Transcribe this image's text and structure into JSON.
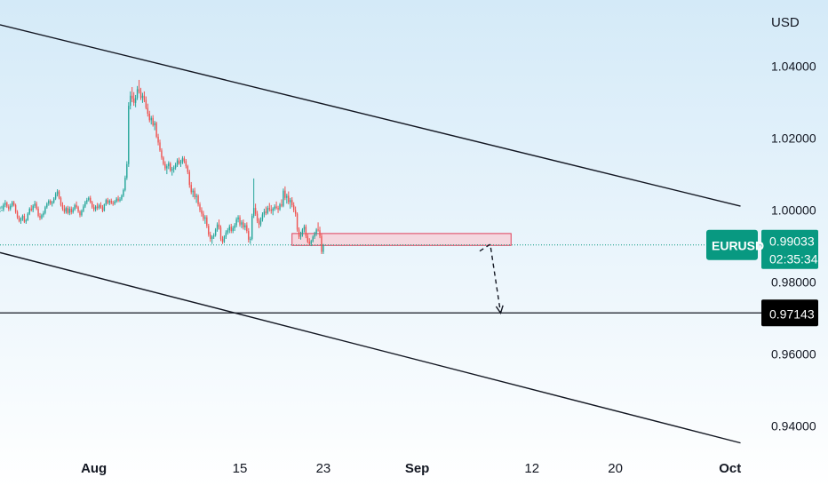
{
  "chart_data": {
    "type": "candlestick",
    "symbol": "EURUSD",
    "currency_label": "USD",
    "x_tick_labels": [
      {
        "label": "Aug",
        "date": "2022-08-01",
        "bold": true
      },
      {
        "label": "15",
        "date": "2022-08-15",
        "bold": false
      },
      {
        "label": "23",
        "date": "2022-08-23",
        "bold": false
      },
      {
        "label": "Sep",
        "date": "2022-09-01",
        "bold": true
      },
      {
        "label": "12",
        "date": "2022-09-12",
        "bold": false
      },
      {
        "label": "20",
        "date": "2022-09-20",
        "bold": false
      },
      {
        "label": "Oct",
        "date": "2022-10-01",
        "bold": true
      }
    ],
    "y_tick_labels": [
      "1.04000",
      "1.02000",
      "1.00000",
      "0.98000",
      "0.96000",
      "0.94000"
    ],
    "y_ticks": [
      1.04,
      1.02,
      1.0,
      0.98,
      0.96,
      0.94
    ],
    "ylim": [
      0.932,
      1.0584
    ],
    "xlim": [
      "2022-07-23",
      "2022-10-04"
    ],
    "current_price": {
      "label": "0.99033",
      "value": 0.99033,
      "countdown": "02:35:34",
      "color": "#089981"
    },
    "target_level": {
      "label": "0.97143",
      "value": 0.97143
    },
    "channel_upper": {
      "from": [
        "2022-07-23",
        1.0515
      ],
      "to": [
        "2022-10-02",
        1.0011
      ]
    },
    "channel_lower": {
      "from": [
        "2022-07-23",
        0.9882
      ],
      "to": [
        "2022-10-02",
        0.9353
      ]
    },
    "support_zone": {
      "from": "2022-08-20",
      "to": "2022-09-10",
      "top": 0.9935,
      "bottom": 0.9902
    },
    "projection_path": [
      [
        "2022-09-07",
        0.9886
      ],
      [
        "2022-09-08",
        0.9905
      ],
      [
        "2022-09-09",
        0.9714
      ]
    ],
    "colors": {
      "up": "#26a69a",
      "down": "#ef5350",
      "background_top": "#d4eaf8",
      "background_bottom": "#ffffff",
      "zone_fill": "#f7cdd6",
      "zone_border": "#e0405a"
    },
    "candles_4h": [
      [
        0.9995,
        1.001,
        1.0002,
        0.9998
      ],
      [
        0.9998,
        1.0012,
        1.0004,
        1.0001
      ],
      [
        1.0001,
        1.002,
        0.9996,
        1.0015
      ],
      [
        1.0015,
        1.0028,
        1.0008,
        1.002
      ],
      [
        1.002,
        1.0024,
        1.0006,
        1.001
      ],
      [
        1.001,
        1.0016,
        0.9997,
        1.0003
      ],
      [
        1.0003,
        1.0018,
        0.9998,
        1.0012
      ],
      [
        1.0012,
        1.0026,
        1.0008,
        1.0022
      ],
      [
        1.0022,
        1.0026,
        1.001,
        1.0014
      ],
      [
        1.0014,
        1.0018,
        0.999,
        0.9995
      ],
      [
        0.9995,
        1.0,
        0.9975,
        0.998
      ],
      [
        0.998,
        0.9985,
        0.9966,
        0.997
      ],
      [
        0.997,
        0.998,
        0.9962,
        0.9976
      ],
      [
        0.9976,
        0.9988,
        0.997,
        0.9984
      ],
      [
        0.9984,
        0.999,
        0.9964,
        0.9968
      ],
      [
        0.9968,
        0.9976,
        0.9962,
        0.9972
      ],
      [
        0.9972,
        0.9994,
        0.997,
        0.999
      ],
      [
        0.999,
        1.0008,
        0.9986,
        1.0004
      ],
      [
        1.0004,
        1.0014,
        0.9996,
        1.0
      ],
      [
        1.0,
        1.0016,
        0.9994,
        1.0012
      ],
      [
        1.0012,
        1.0026,
        1.0006,
        1.0018
      ],
      [
        1.0018,
        1.0024,
        1.0,
        1.0004
      ],
      [
        1.0004,
        1.001,
        0.998,
        0.9984
      ],
      [
        0.9984,
        0.9992,
        0.9972,
        0.9978
      ],
      [
        0.9978,
        0.999,
        0.9974,
        0.9986
      ],
      [
        0.9986,
        0.9998,
        0.998,
        0.9992
      ],
      [
        0.9992,
        1.0012,
        0.9988,
        1.0008
      ],
      [
        1.0008,
        1.0022,
        1.0004,
        1.0018
      ],
      [
        1.0018,
        1.003,
        1.0012,
        1.0026
      ],
      [
        1.0026,
        1.003,
        1.0014,
        1.0018
      ],
      [
        1.0018,
        1.0026,
        1.001,
        1.0022
      ],
      [
        1.0022,
        1.0036,
        1.0018,
        1.0032
      ],
      [
        1.0032,
        1.005,
        1.0028,
        1.0044
      ],
      [
        1.0044,
        1.0058,
        1.0038,
        1.0052
      ],
      [
        1.0052,
        1.0056,
        1.003,
        1.0034
      ],
      [
        1.0034,
        1.0038,
        1.001,
        1.0014
      ],
      [
        1.0014,
        1.0022,
        0.9998,
        1.0004
      ],
      [
        1.0004,
        1.0014,
        0.999,
        0.9996
      ],
      [
        0.9996,
        1.001,
        0.999,
        1.0006
      ],
      [
        1.0006,
        1.0012,
        0.9988,
        0.9992
      ],
      [
        0.9992,
        1.001,
        0.9986,
        1.0004
      ],
      [
        1.0004,
        1.001,
        0.9988,
        0.9994
      ],
      [
        0.9994,
        1.0008,
        0.999,
        1.0002
      ],
      [
        1.0002,
        1.0018,
        0.9998,
        1.0014
      ],
      [
        1.0014,
        1.0024,
        1.0004,
        1.0008
      ],
      [
        1.0008,
        1.0012,
        0.9992,
        0.9996
      ],
      [
        0.9996,
        1.0,
        0.998,
        0.9986
      ],
      [
        0.9986,
        1.0002,
        0.9982,
        0.9998
      ],
      [
        0.9998,
        1.0016,
        0.9994,
        1.001
      ],
      [
        1.001,
        1.0026,
        1.0006,
        1.0022
      ],
      [
        1.0022,
        1.0034,
        1.0016,
        1.0028
      ],
      [
        1.0028,
        1.0038,
        1.0024,
        1.0034
      ],
      [
        1.0034,
        1.004,
        1.0018,
        1.0022
      ],
      [
        1.0022,
        1.0026,
        1.0004,
        1.0008
      ],
      [
        1.0008,
        1.0016,
        0.9996,
        1.0002
      ],
      [
        1.0002,
        1.0014,
        0.9996,
        1.001
      ],
      [
        1.001,
        1.002,
        1.0,
        1.0006
      ],
      [
        1.0006,
        1.0018,
        1.0002,
        1.0014
      ],
      [
        1.0014,
        1.0022,
        1.0004,
        1.0008
      ],
      [
        1.0008,
        1.0014,
        0.9994,
        0.9998
      ],
      [
        0.9998,
        1.0018,
        0.9996,
        1.0016
      ],
      [
        1.0016,
        1.0032,
        1.0012,
        1.0028
      ],
      [
        1.0028,
        1.0034,
        1.0016,
        1.002
      ],
      [
        1.002,
        1.003,
        1.0014,
        1.0026
      ],
      [
        1.0026,
        1.0032,
        1.0016,
        1.002
      ],
      [
        1.002,
        1.0026,
        1.0012,
        1.0018
      ],
      [
        1.0018,
        1.0028,
        1.0014,
        1.0024
      ],
      [
        1.0024,
        1.0036,
        1.002,
        1.0032
      ],
      [
        1.0032,
        1.004,
        1.0022,
        1.0026
      ],
      [
        1.0026,
        1.0036,
        1.0022,
        1.003
      ],
      [
        1.003,
        1.0044,
        1.0026,
        1.004
      ],
      [
        1.004,
        1.006,
        1.0036,
        1.0056
      ],
      [
        1.0056,
        1.0096,
        1.0052,
        1.009
      ],
      [
        1.009,
        1.0136,
        1.0084,
        1.0128
      ],
      [
        1.0128,
        1.03,
        1.012,
        1.029
      ],
      [
        1.029,
        1.033,
        1.028,
        1.0318
      ],
      [
        1.0318,
        1.0342,
        1.03,
        1.031
      ],
      [
        1.031,
        1.0328,
        1.029,
        1.0298
      ],
      [
        1.0298,
        1.032,
        1.0286,
        1.0312
      ],
      [
        1.0312,
        1.0345,
        1.0306,
        1.0336
      ],
      [
        1.0336,
        1.0362,
        1.0324,
        1.033
      ],
      [
        1.033,
        1.034,
        1.0306,
        1.0312
      ],
      [
        1.0312,
        1.0326,
        1.0298,
        1.0318
      ],
      [
        1.0318,
        1.033,
        1.03,
        1.0306
      ],
      [
        1.0306,
        1.0316,
        1.028,
        1.0284
      ],
      [
        1.0284,
        1.0296,
        1.026,
        1.0268
      ],
      [
        1.0268,
        1.0276,
        1.0244,
        1.025
      ],
      [
        1.025,
        1.0262,
        1.0238,
        1.0256
      ],
      [
        1.0256,
        1.0264,
        1.0232,
        1.0236
      ],
      [
        1.0236,
        1.0248,
        1.0222,
        1.0242
      ],
      [
        1.0242,
        1.0246,
        1.02,
        1.0204
      ],
      [
        1.0204,
        1.0212,
        1.018,
        1.0188
      ],
      [
        1.0188,
        1.0196,
        1.0162,
        1.0166
      ],
      [
        1.0166,
        1.0172,
        1.014,
        1.0146
      ],
      [
        1.0146,
        1.015,
        1.0124,
        1.0128
      ],
      [
        1.0128,
        1.0136,
        1.011,
        1.0116
      ],
      [
        1.0116,
        1.0128,
        1.01,
        1.0122
      ],
      [
        1.0122,
        1.0136,
        1.0114,
        1.013
      ],
      [
        1.013,
        1.0134,
        1.0106,
        1.011
      ],
      [
        1.011,
        1.012,
        1.0096,
        1.0114
      ],
      [
        1.0114,
        1.0124,
        1.0104,
        1.0118
      ],
      [
        1.0118,
        1.0132,
        1.0112,
        1.0126
      ],
      [
        1.0126,
        1.0144,
        1.012,
        1.0138
      ],
      [
        1.0138,
        1.0146,
        1.0126,
        1.013
      ],
      [
        1.013,
        1.014,
        1.012,
        1.0134
      ],
      [
        1.0134,
        1.015,
        1.0128,
        1.0144
      ],
      [
        1.0144,
        1.015,
        1.013,
        1.0136
      ],
      [
        1.0136,
        1.0142,
        1.0116,
        1.0122
      ],
      [
        1.0122,
        1.0126,
        1.01,
        1.0106
      ],
      [
        1.0106,
        1.0112,
        1.0062,
        1.007
      ],
      [
        1.007,
        1.0078,
        1.0044,
        1.005
      ],
      [
        1.005,
        1.006,
        1.0036,
        1.0054
      ],
      [
        1.0054,
        1.0062,
        1.003,
        1.0036
      ],
      [
        1.0036,
        1.0046,
        1.002,
        1.004
      ],
      [
        1.004,
        1.0044,
        1.001,
        1.0016
      ],
      [
        1.0016,
        1.0022,
        0.9994,
        1.0
      ],
      [
        1.0,
        1.0008,
        0.9982,
        0.999
      ],
      [
        0.999,
        0.9998,
        0.997,
        0.9976
      ],
      [
        0.9976,
        0.9986,
        0.9962,
        0.998
      ],
      [
        0.998,
        0.9986,
        0.995,
        0.9956
      ],
      [
        0.9956,
        0.9962,
        0.9926,
        0.9932
      ],
      [
        0.9932,
        0.994,
        0.9912,
        0.992
      ],
      [
        0.992,
        0.993,
        0.9906,
        0.9926
      ],
      [
        0.9926,
        0.9936,
        0.992,
        0.993
      ],
      [
        0.993,
        0.995,
        0.9926,
        0.9946
      ],
      [
        0.9946,
        0.9966,
        0.994,
        0.996
      ],
      [
        0.996,
        0.9974,
        0.9946,
        0.9952
      ],
      [
        0.9952,
        0.9958,
        0.9914,
        0.992
      ],
      [
        0.992,
        0.9928,
        0.9906,
        0.9912
      ],
      [
        0.9912,
        0.993,
        0.9908,
        0.9926
      ],
      [
        0.9926,
        0.9944,
        0.992,
        0.9938
      ],
      [
        0.9938,
        0.995,
        0.9932,
        0.9944
      ],
      [
        0.9944,
        0.996,
        0.9936,
        0.9954
      ],
      [
        0.9954,
        0.9962,
        0.9936,
        0.9942
      ],
      [
        0.9942,
        0.9956,
        0.9936,
        0.995
      ],
      [
        0.995,
        0.9964,
        0.9942,
        0.9958
      ],
      [
        0.9958,
        0.998,
        0.9952,
        0.9974
      ],
      [
        0.9974,
        0.9986,
        0.9966,
        0.998
      ],
      [
        0.998,
        0.9986,
        0.9954,
        0.996
      ],
      [
        0.996,
        0.9972,
        0.995,
        0.9966
      ],
      [
        0.9966,
        0.9974,
        0.9946,
        0.9952
      ],
      [
        0.9952,
        0.9964,
        0.9944,
        0.9958
      ],
      [
        0.9958,
        0.9966,
        0.9936,
        0.9942
      ],
      [
        0.9942,
        0.995,
        0.991,
        0.9918
      ],
      [
        0.9918,
        0.9926,
        0.9906,
        0.992
      ],
      [
        0.992,
        0.999,
        0.9916,
        0.9984
      ],
      [
        0.9984,
        1.0088,
        0.9978,
        1.0006
      ],
      [
        1.0006,
        1.0018,
        0.9984,
        0.999
      ],
      [
        0.999,
        0.9998,
        0.9964,
        0.997
      ],
      [
        0.997,
        0.9978,
        0.995,
        0.996
      ],
      [
        0.996,
        0.998,
        0.9954,
        0.9974
      ],
      [
        0.9974,
        0.9994,
        0.9968,
        0.9988
      ],
      [
        0.9988,
        1.0004,
        0.998,
        0.9996
      ],
      [
        0.9996,
        1.001,
        0.9986,
        0.9992
      ],
      [
        0.9992,
        1.0012,
        0.9988,
        1.0006
      ],
      [
        1.0006,
        1.002,
        0.9996,
        1.0002
      ],
      [
        1.0002,
        1.0014,
        0.999,
        0.9998
      ],
      [
        0.9998,
        1.0008,
        0.9986,
        1.0004
      ],
      [
        1.0004,
        1.0016,
        0.9998,
        1.001
      ],
      [
        1.001,
        1.0024,
        1.0002,
        1.0006
      ],
      [
        1.0006,
        1.0012,
        0.9992,
        1.0002
      ],
      [
        1.0002,
        1.002,
        0.9998,
        1.0016
      ],
      [
        1.0016,
        1.003,
        1.0008,
        1.0012
      ],
      [
        1.0012,
        1.006,
        1.0008,
        1.0054
      ],
      [
        1.0054,
        1.0066,
        1.0028,
        1.0034
      ],
      [
        1.0034,
        1.0046,
        1.0018,
        1.004
      ],
      [
        1.004,
        1.0052,
        1.0016,
        1.0022
      ],
      [
        1.0022,
        1.0034,
        1.0004,
        1.0028
      ],
      [
        1.0028,
        1.0036,
        1.0008,
        1.0014
      ],
      [
        1.0014,
        1.0022,
        0.9994,
        1.0
      ],
      [
        1.0,
        1.001,
        0.9982,
        0.999
      ],
      [
        0.999,
        0.9994,
        0.994,
        0.9946
      ],
      [
        0.9946,
        0.9952,
        0.992,
        0.9926
      ],
      [
        0.9926,
        0.994,
        0.9918,
        0.9932
      ],
      [
        0.9932,
        0.995,
        0.9926,
        0.9946
      ],
      [
        0.9946,
        0.996,
        0.9938,
        0.9954
      ],
      [
        0.9954,
        0.996,
        0.9922,
        0.9928
      ],
      [
        0.9928,
        0.9936,
        0.9908,
        0.9912
      ],
      [
        0.9912,
        0.9922,
        0.9902,
        0.9906
      ],
      [
        0.9906,
        0.9918,
        0.99,
        0.9914
      ],
      [
        0.9914,
        0.993,
        0.991,
        0.9926
      ],
      [
        0.9926,
        0.994,
        0.992,
        0.9934
      ],
      [
        0.9934,
        0.995,
        0.9928,
        0.9946
      ],
      [
        0.9946,
        0.9966,
        0.994,
        0.9944
      ],
      [
        0.9944,
        0.9954,
        0.9922,
        0.9928
      ],
      [
        0.9928,
        0.9934,
        0.9878,
        0.9884
      ],
      [
        0.9884,
        0.9906,
        0.9878,
        0.9903
      ]
    ]
  }
}
